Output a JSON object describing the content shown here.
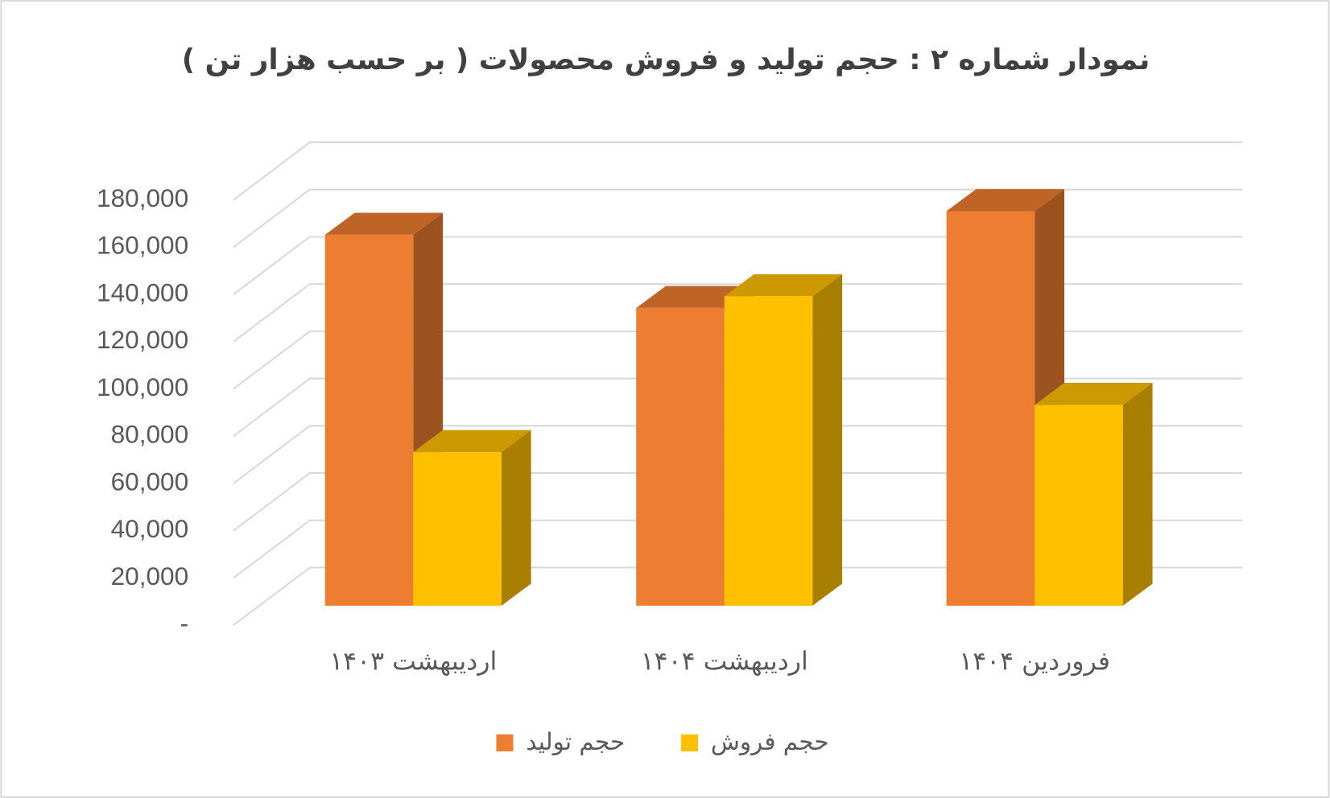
{
  "chart_data": {
    "type": "bar3d",
    "title": "نمودار شماره ۲ : حجم تولید و فروش محصولات ( بر حسب هزار تن )",
    "categories": [
      "اردیبهشت ۱۴۰۳",
      "اردیبهشت ۱۴۰۴",
      "فروردین ۱۴۰۴"
    ],
    "series": [
      {
        "name": "حجم تولید",
        "color": "#ED7D31",
        "values": [
          157000,
          126000,
          167000
        ]
      },
      {
        "name": "حجم فروش",
        "color": "#FFC000",
        "values": [
          65000,
          131000,
          85000
        ]
      }
    ],
    "ylim": [
      0,
      180000
    ],
    "yticks": [
      {
        "value": 0,
        "label": "-"
      },
      {
        "value": 20000,
        "label": "20,000"
      },
      {
        "value": 40000,
        "label": "40,000"
      },
      {
        "value": 60000,
        "label": "60,000"
      },
      {
        "value": 80000,
        "label": "80,000"
      },
      {
        "value": 100000,
        "label": "100,000"
      },
      {
        "value": 120000,
        "label": "120,000"
      },
      {
        "value": 140000,
        "label": "140,000"
      },
      {
        "value": 160000,
        "label": "160,000"
      },
      {
        "value": 180000,
        "label": "180,000"
      }
    ],
    "grid": true,
    "legend": "bottom"
  }
}
